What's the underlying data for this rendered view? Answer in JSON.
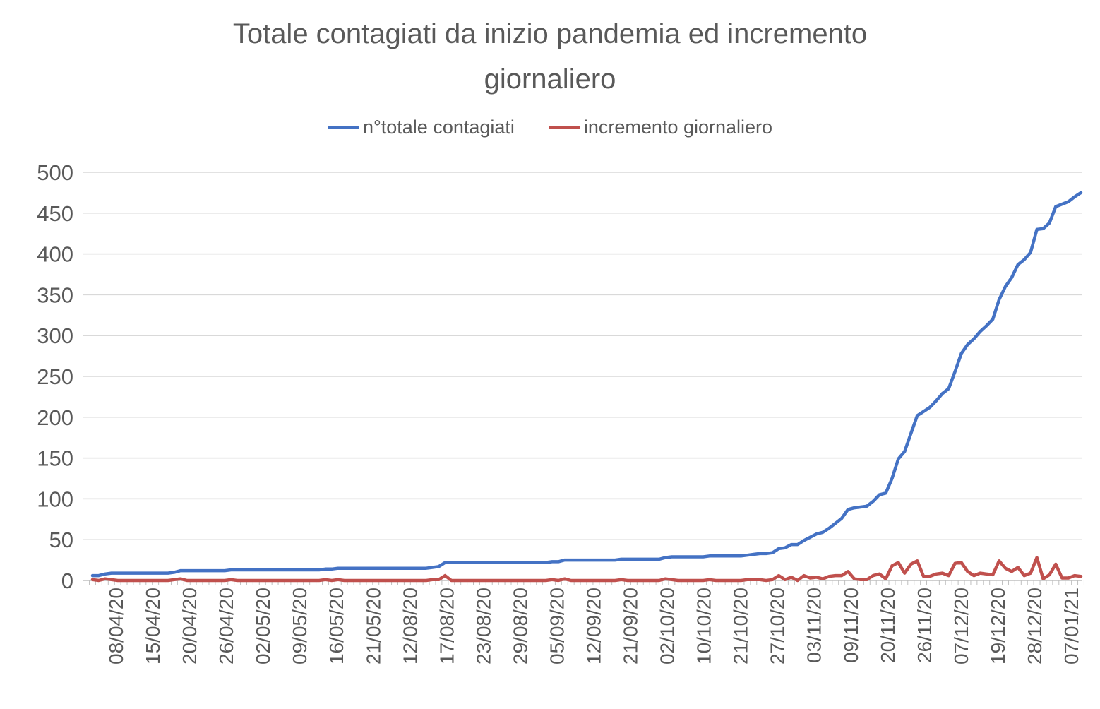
{
  "chart_data": {
    "type": "line",
    "title_line1": "Totale contagiati da inizio pandemia ed incremento",
    "title_line2": "giornaliero",
    "ylim": [
      0,
      500
    ],
    "yticks": [
      0,
      50,
      100,
      150,
      200,
      250,
      300,
      350,
      400,
      450,
      500
    ],
    "xtick_labels": [
      "08/04/20",
      "15/04/20",
      "20/04/20",
      "26/04/20",
      "02/05/20",
      "09/05/20",
      "16/05/20",
      "21/05/20",
      "12/08/20",
      "17/08/20",
      "23/08/20",
      "29/08/20",
      "05/09/20",
      "12/09/20",
      "21/09/20",
      "02/10/20",
      "10/10/20",
      "21/10/20",
      "27/10/20",
      "03/11/20",
      "09/11/20",
      "20/11/20",
      "26/11/20",
      "07/12/20",
      "19/12/20",
      "28/12/20",
      "07/01/21"
    ],
    "grid": "horizontal",
    "legend_position": "top",
    "series": [
      {
        "name": "n°totale contagiati",
        "color": "#4472C4",
        "values": [
          6,
          6,
          8,
          9,
          9,
          9,
          9,
          9,
          9,
          9,
          9,
          9,
          9,
          10,
          12,
          12,
          12,
          12,
          12,
          12,
          12,
          12,
          13,
          13,
          13,
          13,
          13,
          13,
          13,
          13,
          13,
          13,
          13,
          13,
          13,
          13,
          13,
          14,
          14,
          15,
          15,
          15,
          15,
          15,
          15,
          15,
          15,
          15,
          15,
          15,
          15,
          15,
          15,
          15,
          16,
          17,
          22,
          22,
          22,
          22,
          22,
          22,
          22,
          22,
          22,
          22,
          22,
          22,
          22,
          22,
          22,
          22,
          22,
          23,
          23,
          25,
          25,
          25,
          25,
          25,
          25,
          25,
          25,
          25,
          26,
          26,
          26,
          26,
          26,
          26,
          26,
          28,
          29,
          29,
          29,
          29,
          29,
          29,
          30,
          30,
          30,
          30,
          30,
          30,
          31,
          32,
          33,
          33,
          34,
          39,
          40,
          44,
          44,
          49,
          53,
          57,
          59,
          64,
          70,
          76,
          87,
          89,
          90,
          91,
          97,
          105,
          107,
          125,
          149,
          158,
          180,
          202,
          207,
          212,
          220,
          229,
          235,
          256,
          278,
          289,
          296,
          305,
          312,
          320,
          344,
          360,
          371,
          387,
          393,
          402,
          430,
          431,
          438,
          458,
          461,
          464,
          470,
          475
        ]
      },
      {
        "name": "incremento giornaliero",
        "color": "#C0504D",
        "values": [
          1,
          0,
          2,
          1,
          0,
          0,
          0,
          0,
          0,
          0,
          0,
          0,
          0,
          1,
          2,
          0,
          0,
          0,
          0,
          0,
          0,
          0,
          1,
          0,
          0,
          0,
          0,
          0,
          0,
          0,
          0,
          0,
          0,
          0,
          0,
          0,
          0,
          1,
          0,
          1,
          0,
          0,
          0,
          0,
          0,
          0,
          0,
          0,
          0,
          0,
          0,
          0,
          0,
          0,
          1,
          1,
          6,
          0,
          0,
          0,
          0,
          0,
          0,
          0,
          0,
          0,
          0,
          0,
          0,
          0,
          0,
          0,
          0,
          1,
          0,
          2,
          0,
          0,
          0,
          0,
          0,
          0,
          0,
          0,
          1,
          0,
          0,
          0,
          0,
          0,
          0,
          2,
          1,
          0,
          0,
          0,
          0,
          0,
          1,
          0,
          0,
          0,
          0,
          0,
          1,
          1,
          1,
          0,
          1,
          6,
          1,
          4,
          0,
          6,
          3,
          4,
          2,
          5,
          6,
          6,
          11,
          2,
          1,
          1,
          6,
          8,
          2,
          18,
          22,
          9,
          20,
          24,
          5,
          5,
          8,
          9,
          6,
          21,
          22,
          11,
          6,
          9,
          8,
          7,
          24,
          15,
          11,
          16,
          6,
          9,
          28,
          2,
          7,
          20,
          3,
          3,
          6,
          5
        ]
      }
    ]
  }
}
